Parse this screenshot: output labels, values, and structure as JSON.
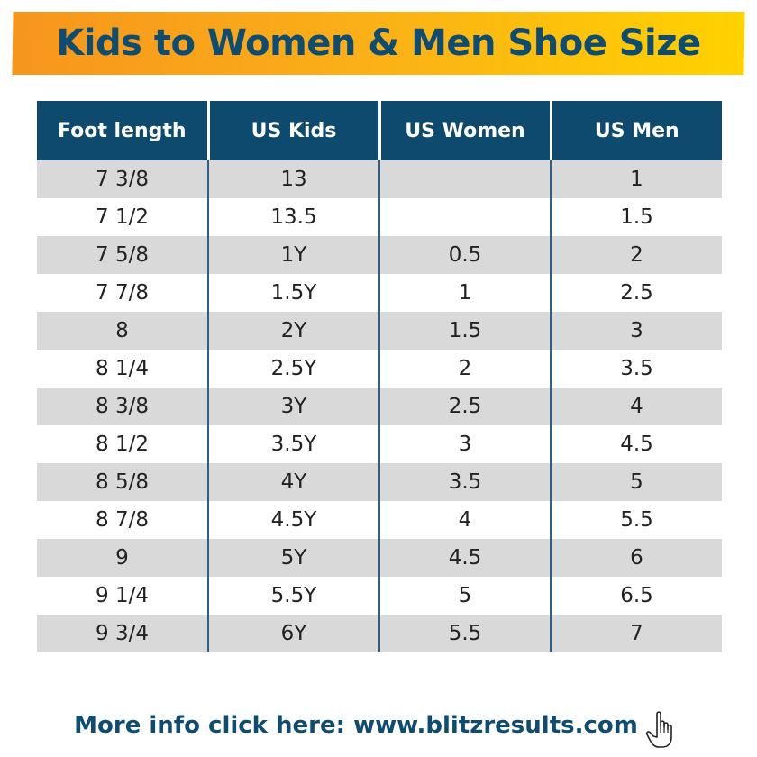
{
  "title": "Kids to Women & Men Shoe Size",
  "table": {
    "headers": [
      "Foot length",
      "US Kids",
      "US Women",
      "US Men"
    ],
    "rows": [
      [
        "7 3/8",
        "13",
        "",
        "1"
      ],
      [
        "7 1/2",
        "13.5",
        "",
        "1.5"
      ],
      [
        "7 5/8",
        "1Y",
        "0.5",
        "2"
      ],
      [
        "7 7/8",
        "1.5Y",
        "1",
        "2.5"
      ],
      [
        "8",
        "2Y",
        "1.5",
        "3"
      ],
      [
        "8 1/4",
        "2.5Y",
        "2",
        "3.5"
      ],
      [
        "8 3/8",
        "3Y",
        "2.5",
        "4"
      ],
      [
        "8 1/2",
        "3.5Y",
        "3",
        "4.5"
      ],
      [
        "8 5/8",
        "4Y",
        "3.5",
        "5"
      ],
      [
        "8 7/8",
        "4.5Y",
        "4",
        "5.5"
      ],
      [
        "9",
        "5Y",
        "4.5",
        "6"
      ],
      [
        "9 1/4",
        "5.5Y",
        "5",
        "6.5"
      ],
      [
        "9 3/4",
        "6Y",
        "5.5",
        "7"
      ]
    ]
  },
  "footer": {
    "text": "More info click here: www.blitzresults.com",
    "icon": "pointing-hand-icon"
  },
  "colors": {
    "title_text": "#0f4c72",
    "banner_start": "#f7951d",
    "banner_end": "#ffd200",
    "header_bg": "#0e4a6e",
    "stripe": "#d9d9d9"
  }
}
